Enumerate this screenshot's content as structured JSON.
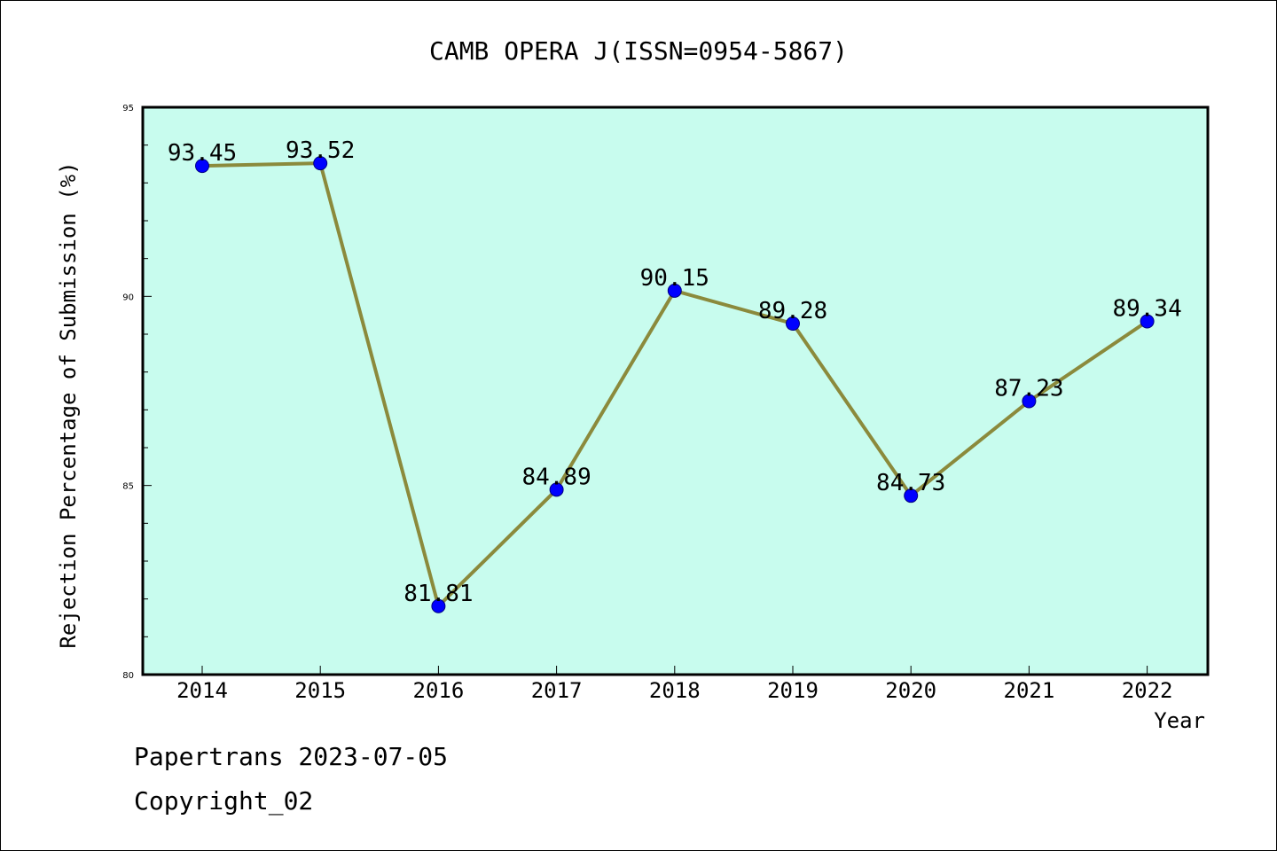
{
  "chart_data": {
    "type": "line",
    "title": "CAMB OPERA J(ISSN=0954-5867)",
    "xlabel": "Year",
    "ylabel": "Rejection Percentage of Submission (%)",
    "categories": [
      "2014",
      "2015",
      "2016",
      "2017",
      "2018",
      "2019",
      "2020",
      "2021",
      "2022"
    ],
    "series": [
      {
        "values": [
          93.45,
          93.52,
          81.81,
          84.89,
          90.15,
          89.28,
          84.73,
          87.23,
          89.34
        ],
        "labels": [
          "93.45",
          "93.52",
          "81.81",
          "84.89",
          "90.15",
          "89.28",
          "84.73",
          "87.23",
          "89.34"
        ],
        "line_color": "#8b8a3c",
        "marker_color": "#0000ff"
      }
    ],
    "ylim": [
      80,
      95
    ],
    "yticks": [
      "80",
      "85",
      "90",
      "95"
    ],
    "plot_background": "#c8fcee",
    "grid": false,
    "legend": "none"
  },
  "footer": {
    "date_line": "Papertrans 2023-07-05",
    "copyright_line": "Copyright_02"
  }
}
